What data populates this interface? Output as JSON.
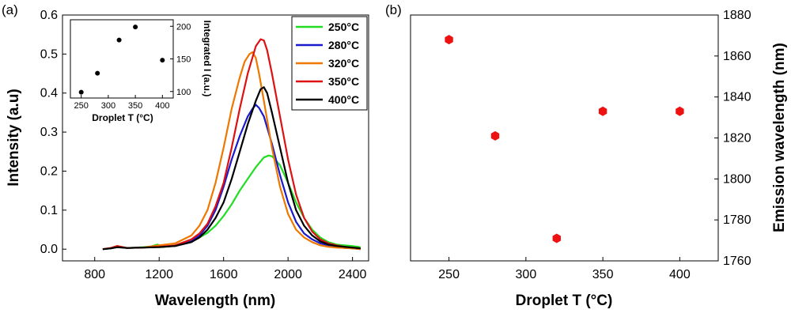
{
  "chart_data": [
    {
      "panel_label": "(a)",
      "type": "line",
      "xlabel": "Wavelength (nm)",
      "ylabel": "Intensity (a.u)",
      "xlim": [
        600,
        2500
      ],
      "ylim": [
        -0.03,
        0.6
      ],
      "xticks": [
        800,
        1200,
        1600,
        2000,
        2400
      ],
      "xtick_labels": [
        "800",
        "1200",
        "1600",
        "2000",
        "2400"
      ],
      "yticks": [
        0.0,
        0.1,
        0.2,
        0.3,
        0.4,
        0.5,
        0.6
      ],
      "ytick_labels": [
        "0.0",
        "0.1",
        "0.2",
        "0.3",
        "0.4",
        "0.5",
        "0.6"
      ],
      "legend_position": "top-right",
      "series": [
        {
          "name": "250°C",
          "color": "#22dd22",
          "x": [
            850,
            900,
            940,
            1000,
            1100,
            1150,
            1190,
            1220,
            1300,
            1400,
            1450,
            1500,
            1550,
            1600,
            1650,
            1700,
            1750,
            1800,
            1850,
            1880,
            1900,
            1920,
            1950,
            2000,
            2050,
            2100,
            2150,
            2200,
            2250,
            2300,
            2350,
            2400,
            2450
          ],
          "y": [
            0.0,
            0.002,
            0.005,
            0.003,
            0.005,
            0.007,
            0.012,
            0.005,
            0.01,
            0.02,
            0.03,
            0.042,
            0.06,
            0.085,
            0.115,
            0.15,
            0.18,
            0.21,
            0.235,
            0.24,
            0.238,
            0.23,
            0.215,
            0.17,
            0.12,
            0.08,
            0.05,
            0.03,
            0.018,
            0.012,
            0.01,
            0.008,
            0.005
          ]
        },
        {
          "name": "280°C",
          "color": "#1a1acc",
          "x": [
            850,
            900,
            940,
            1000,
            1100,
            1200,
            1300,
            1400,
            1450,
            1500,
            1550,
            1600,
            1650,
            1700,
            1750,
            1780,
            1800,
            1820,
            1850,
            1900,
            1950,
            2000,
            2050,
            2100,
            2150,
            2200,
            2250,
            2300,
            2350,
            2400,
            2450
          ],
          "y": [
            0.0,
            0.002,
            0.006,
            0.003,
            0.004,
            0.006,
            0.008,
            0.02,
            0.035,
            0.06,
            0.1,
            0.16,
            0.23,
            0.29,
            0.34,
            0.36,
            0.37,
            0.362,
            0.34,
            0.27,
            0.19,
            0.12,
            0.07,
            0.04,
            0.025,
            0.015,
            0.01,
            0.005,
            0.003,
            0.002,
            0.0
          ]
        },
        {
          "name": "320°C",
          "color": "#ee7700",
          "x": [
            850,
            900,
            940,
            1000,
            1100,
            1200,
            1300,
            1400,
            1450,
            1500,
            1550,
            1600,
            1650,
            1700,
            1730,
            1760,
            1780,
            1800,
            1820,
            1850,
            1900,
            1950,
            2000,
            2050,
            2100,
            2150,
            2200,
            2250,
            2300,
            2350,
            2400,
            2450
          ],
          "y": [
            0.0,
            0.003,
            0.008,
            0.003,
            0.004,
            0.01,
            0.015,
            0.035,
            0.06,
            0.1,
            0.17,
            0.26,
            0.36,
            0.44,
            0.48,
            0.5,
            0.505,
            0.49,
            0.45,
            0.38,
            0.26,
            0.16,
            0.09,
            0.05,
            0.03,
            0.018,
            0.01,
            0.006,
            0.004,
            0.003,
            0.002,
            0.0
          ]
        },
        {
          "name": "350°C",
          "color": "#dd1111",
          "x": [
            850,
            900,
            940,
            1000,
            1100,
            1200,
            1300,
            1400,
            1450,
            1500,
            1550,
            1600,
            1650,
            1700,
            1750,
            1800,
            1830,
            1850,
            1870,
            1900,
            1950,
            2000,
            2050,
            2100,
            2150,
            2200,
            2250,
            2300,
            2350,
            2400,
            2450
          ],
          "y": [
            0.0,
            0.003,
            0.008,
            0.003,
            0.004,
            0.006,
            0.01,
            0.025,
            0.04,
            0.065,
            0.11,
            0.17,
            0.26,
            0.36,
            0.45,
            0.52,
            0.538,
            0.535,
            0.51,
            0.45,
            0.34,
            0.23,
            0.14,
            0.08,
            0.045,
            0.025,
            0.015,
            0.01,
            0.006,
            0.004,
            0.002
          ]
        },
        {
          "name": "400°C",
          "color": "#000000",
          "x": [
            850,
            900,
            940,
            1000,
            1100,
            1200,
            1300,
            1400,
            1450,
            1500,
            1550,
            1600,
            1650,
            1700,
            1750,
            1800,
            1830,
            1850,
            1870,
            1900,
            1950,
            2000,
            2050,
            2100,
            2150,
            2200,
            2250,
            2300,
            2350,
            2400,
            2450
          ],
          "y": [
            0.0,
            0.002,
            0.005,
            0.003,
            0.004,
            0.005,
            0.008,
            0.018,
            0.03,
            0.05,
            0.08,
            0.12,
            0.18,
            0.25,
            0.32,
            0.38,
            0.41,
            0.415,
            0.4,
            0.35,
            0.26,
            0.17,
            0.1,
            0.06,
            0.035,
            0.02,
            0.012,
            0.008,
            0.006,
            0.004,
            0.002
          ]
        }
      ]
    },
    {
      "panel_label": "inset of (a)",
      "type": "scatter",
      "xlabel": "Droplet T (°C)",
      "ylabel": "Integrated I (a.u.)",
      "xlim": [
        230,
        420
      ],
      "ylim": [
        90,
        210
      ],
      "xticks": [
        250,
        300,
        350,
        400
      ],
      "xtick_labels": [
        "250",
        "300",
        "350",
        "400"
      ],
      "yticks": [
        100,
        150,
        200
      ],
      "ytick_labels": [
        "100",
        "150",
        "200"
      ],
      "marker_color": "#000000",
      "x": [
        250,
        280,
        320,
        350,
        400
      ],
      "y": [
        99,
        128,
        179,
        199,
        148
      ]
    },
    {
      "panel_label": "(b)",
      "type": "scatter",
      "xlabel": "Droplet T (°C)",
      "ylabel": "Emission wavelength (nm)",
      "y_axis_side": "right",
      "xlim": [
        225,
        425
      ],
      "ylim": [
        1760,
        1880
      ],
      "xticks": [
        250,
        300,
        350,
        400
      ],
      "xtick_labels": [
        "250",
        "300",
        "350",
        "400"
      ],
      "yticks": [
        1760,
        1780,
        1800,
        1820,
        1840,
        1860,
        1880
      ],
      "ytick_labels": [
        "1760",
        "1780",
        "1800",
        "1820",
        "1840",
        "1860",
        "1880"
      ],
      "marker_color": "#ee1111",
      "x": [
        250,
        280,
        320,
        350,
        400
      ],
      "y": [
        1868,
        1821,
        1771,
        1833,
        1833
      ]
    }
  ]
}
